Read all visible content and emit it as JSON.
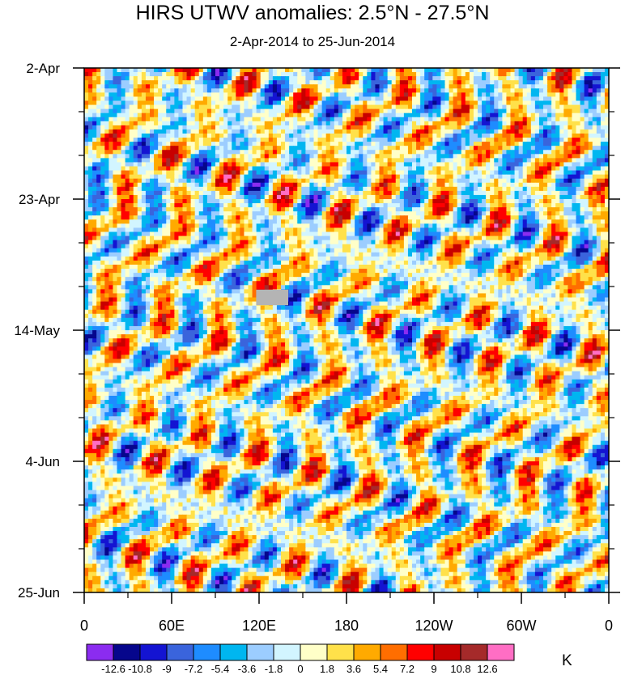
{
  "chart_data": {
    "type": "heatmap",
    "title": "HIRS UTWV anomalies: 2.5°N - 27.5°N",
    "subtitle": "2-Apr-2014 to 25-Jun-2014",
    "x_label_ticks": [
      "0",
      "60E",
      "120E",
      "180",
      "120W",
      "60W",
      "0"
    ],
    "x_range_deg_east": [
      0,
      360
    ],
    "y_label_ticks": [
      "2-Apr",
      "23-Apr",
      "14-May",
      "4-Jun",
      "25-Jun"
    ],
    "y_range_days": [
      0,
      84
    ],
    "colorbar": {
      "levels": [
        "-12.6",
        "-10.8",
        "-9",
        "-7.2",
        "-5.4",
        "-3.6",
        "-1.8",
        "0",
        "1.8",
        "3.6",
        "5.4",
        "7.2",
        "9",
        "10.8",
        "12.6"
      ],
      "colors": [
        "#8b2cf0",
        "#06068c",
        "#1414d2",
        "#3a64dc",
        "#1e8cff",
        "#00b6f0",
        "#9ccdff",
        "#d2f5ff",
        "#ffffc8",
        "#ffe14a",
        "#ffaa00",
        "#ff6e00",
        "#ff0000",
        "#c80000",
        "#a52a2a",
        "#ff6ec4"
      ],
      "units": "K"
    },
    "missing_data": {
      "lon_range": [
        118,
        140
      ],
      "day_range": [
        35.5,
        38
      ],
      "color": "#b4b4b4"
    }
  }
}
